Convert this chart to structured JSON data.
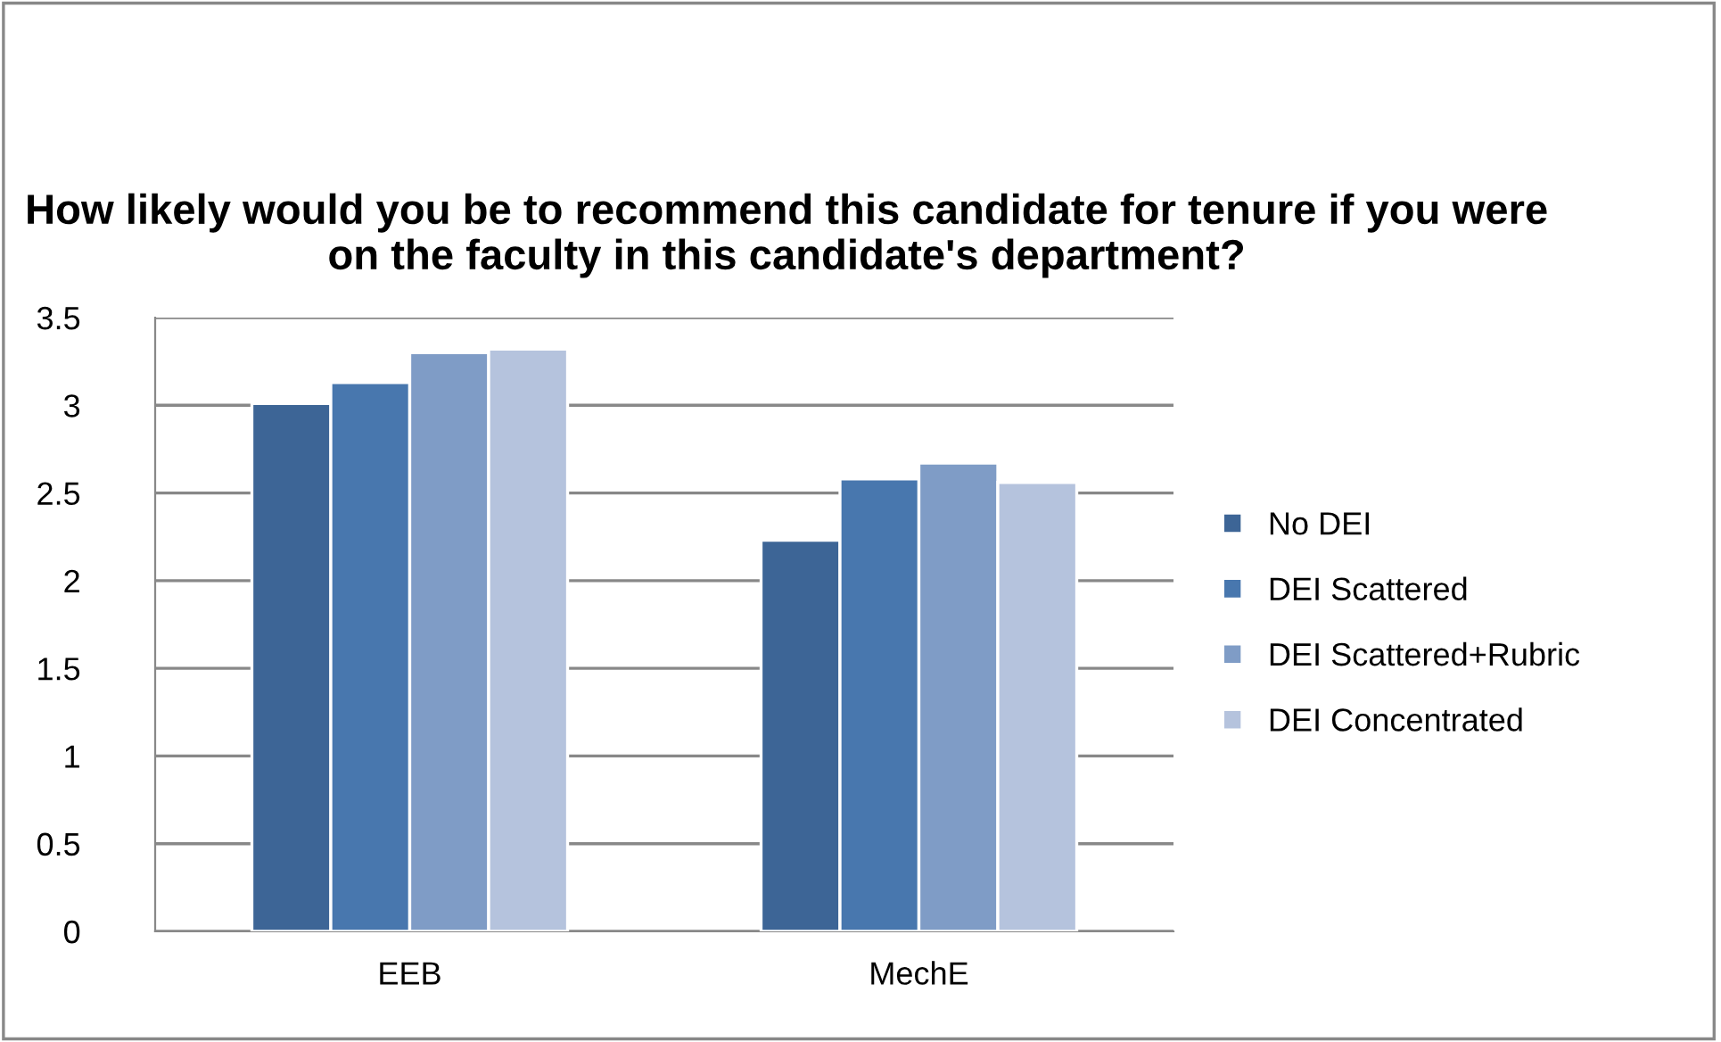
{
  "chart_data": {
    "type": "bar",
    "title": "How likely would you be to recommend this candidate for tenure if you were on the faculty in this candidate's department?",
    "categories": [
      "EEB",
      "MechE"
    ],
    "series": [
      {
        "name": "No DEI",
        "color": "#3d6596",
        "values": [
          3.01,
          2.23
        ]
      },
      {
        "name": "DEI Scattered",
        "color": "#4877ae",
        "values": [
          3.13,
          2.58
        ]
      },
      {
        "name": "DEI Scattered+Rubric",
        "color": "#7f9cc6",
        "values": [
          3.3,
          2.67
        ]
      },
      {
        "name": "DEI Concentrated",
        "color": "#b5c3dd",
        "values": [
          3.32,
          2.56
        ]
      }
    ],
    "ylim": [
      0,
      3.5
    ],
    "yticks": [
      0,
      0.5,
      1,
      1.5,
      2,
      2.5,
      3,
      3.5
    ],
    "grid": "y",
    "legend": "right"
  }
}
